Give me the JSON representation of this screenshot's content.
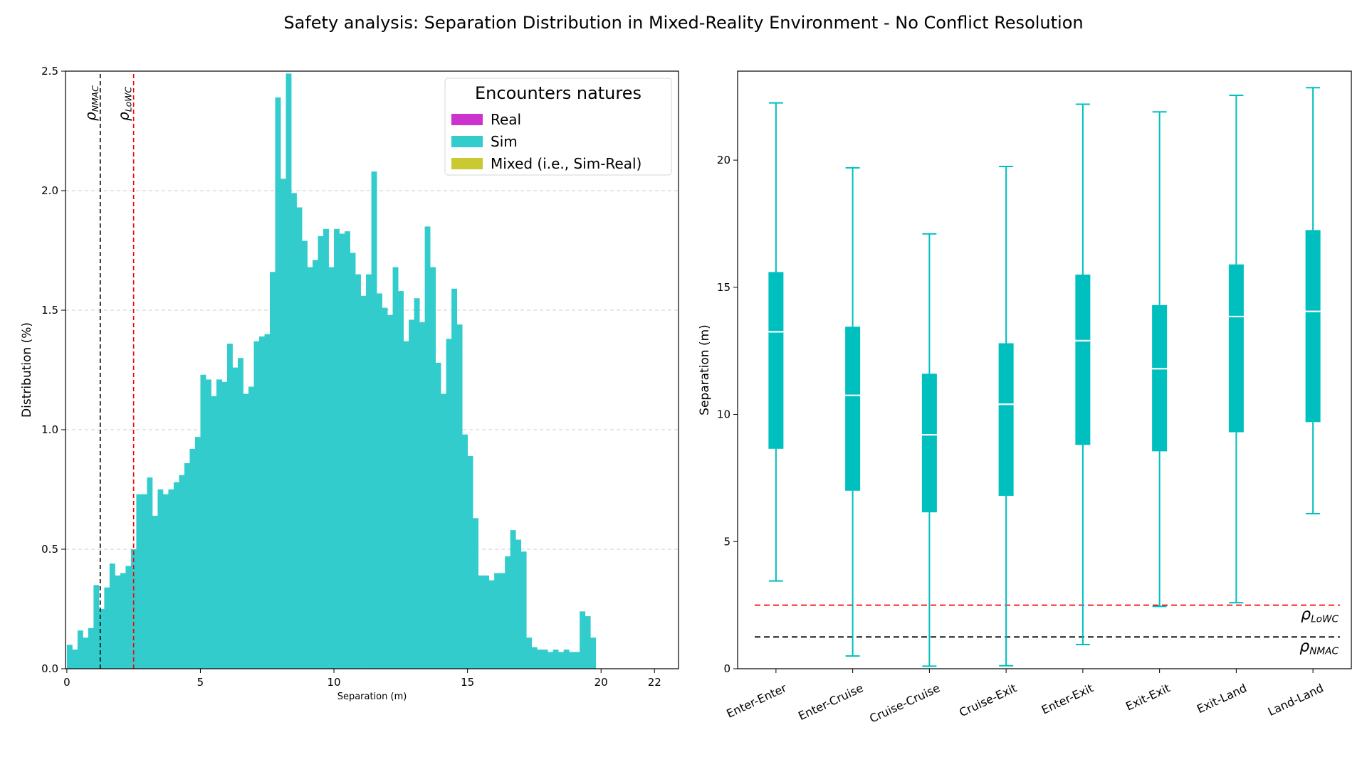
{
  "figure": {
    "suptitle": "Safety analysis: Separation Distribution in Mixed-Reality Environment - No Conflict Resolution"
  },
  "colors": {
    "real": "#cc33cc",
    "sim": "#33cccc",
    "mixed": "#c9c931",
    "box": "#00bfbf",
    "nmac_line": "#000000",
    "lowc_line": "#ff0000"
  },
  "chart_data": [
    {
      "type": "histogram",
      "xlabel": "Separation (m)",
      "ylabel": "Distribution (%)",
      "xlim": [
        -0.05,
        22.9
      ],
      "ylim": [
        0,
        2.5
      ],
      "xticks": [
        0,
        5,
        10,
        15,
        20,
        22
      ],
      "yticks": [
        0.0,
        0.5,
        1.0,
        1.5,
        2.0,
        2.5
      ],
      "grid": "y-dashed",
      "bin_start": 0.0,
      "bin_width": 0.2,
      "series": [
        {
          "name": "Sim",
          "values": [
            0.1,
            0.08,
            0.16,
            0.13,
            0.17,
            0.35,
            0.25,
            0.34,
            0.44,
            0.39,
            0.4,
            0.43,
            0.5,
            0.73,
            0.73,
            0.8,
            0.64,
            0.75,
            0.73,
            0.75,
            0.78,
            0.81,
            0.86,
            0.92,
            0.97,
            1.23,
            1.21,
            1.14,
            1.21,
            1.2,
            1.36,
            1.26,
            1.3,
            1.15,
            1.18,
            1.37,
            1.39,
            1.4,
            1.66,
            2.39,
            2.05,
            2.49,
            1.99,
            1.93,
            1.79,
            1.68,
            1.71,
            1.81,
            1.84,
            1.68,
            1.84,
            1.82,
            1.83,
            1.74,
            1.65,
            1.56,
            1.65,
            2.08,
            1.57,
            1.51,
            1.48,
            1.68,
            1.58,
            1.37,
            1.46,
            1.55,
            1.45,
            1.85,
            1.68,
            1.28,
            1.15,
            1.38,
            1.59,
            1.44,
            0.98,
            0.89,
            0.63,
            0.39,
            0.39,
            0.37,
            0.4,
            0.4,
            0.47,
            0.58,
            0.54,
            0.49,
            0.13,
            0.09,
            0.08,
            0.08,
            0.07,
            0.08,
            0.07,
            0.08,
            0.07,
            0.07,
            0.24,
            0.22,
            0.13
          ]
        },
        {
          "name": "Real",
          "values": []
        },
        {
          "name": "Mixed (i.e., Sim-Real)",
          "values": []
        }
      ],
      "legend": {
        "title": "Encounters natures",
        "placement": "upper-right",
        "entries": [
          "Real",
          "Sim",
          "Mixed (i.e., Sim-Real)"
        ]
      },
      "reference_lines": [
        {
          "name": "nmac",
          "label": "ρNMAC",
          "label_main": "ρ",
          "label_sub": "NMAC",
          "x": 1.25
        },
        {
          "name": "lowc",
          "label": "ρLoWC",
          "label_main": "ρ",
          "label_sub": "LoWC",
          "x": 2.5
        }
      ]
    },
    {
      "type": "boxplot",
      "ylabel": "Separation (m)",
      "ylim": [
        0,
        23.5
      ],
      "yticks": [
        0,
        5,
        10,
        15,
        20
      ],
      "categories": [
        "Enter-Enter",
        "Enter-Cruise",
        "Cruise-Cruise",
        "Cruise-Exit",
        "Enter-Exit",
        "Exit-Exit",
        "Exit-Land",
        "Land-Land"
      ],
      "boxes": [
        {
          "category": "Enter-Enter",
          "whisker_low": 3.45,
          "q1": 8.65,
          "median": 13.25,
          "q3": 15.6,
          "whisker_high": 22.25
        },
        {
          "category": "Enter-Cruise",
          "whisker_low": 0.5,
          "q1": 7.0,
          "median": 10.75,
          "q3": 13.45,
          "whisker_high": 19.7
        },
        {
          "category": "Cruise-Cruise",
          "whisker_low": 0.1,
          "q1": 6.15,
          "median": 9.2,
          "q3": 11.6,
          "whisker_high": 17.1
        },
        {
          "category": "Cruise-Exit",
          "whisker_low": 0.12,
          "q1": 6.8,
          "median": 10.4,
          "q3": 12.8,
          "whisker_high": 19.75
        },
        {
          "category": "Enter-Exit",
          "whisker_low": 0.95,
          "q1": 8.8,
          "median": 12.9,
          "q3": 15.5,
          "whisker_high": 22.2
        },
        {
          "category": "Exit-Exit",
          "whisker_low": 2.45,
          "q1": 8.55,
          "median": 11.8,
          "q3": 14.3,
          "whisker_high": 21.9
        },
        {
          "category": "Exit-Land",
          "whisker_low": 2.6,
          "q1": 9.3,
          "median": 13.85,
          "q3": 15.9,
          "whisker_high": 22.55
        },
        {
          "category": "Land-Land",
          "whisker_low": 6.1,
          "q1": 9.7,
          "median": 14.05,
          "q3": 17.25,
          "whisker_high": 22.85
        }
      ],
      "reference_lines": [
        {
          "name": "lowc",
          "label": "ρLoWC",
          "label_main": "ρ",
          "label_sub": "LoWC",
          "y": 2.5
        },
        {
          "name": "nmac",
          "label": "ρNMAC",
          "label_main": "ρ",
          "label_sub": "NMAC",
          "y": 1.25
        }
      ]
    }
  ]
}
